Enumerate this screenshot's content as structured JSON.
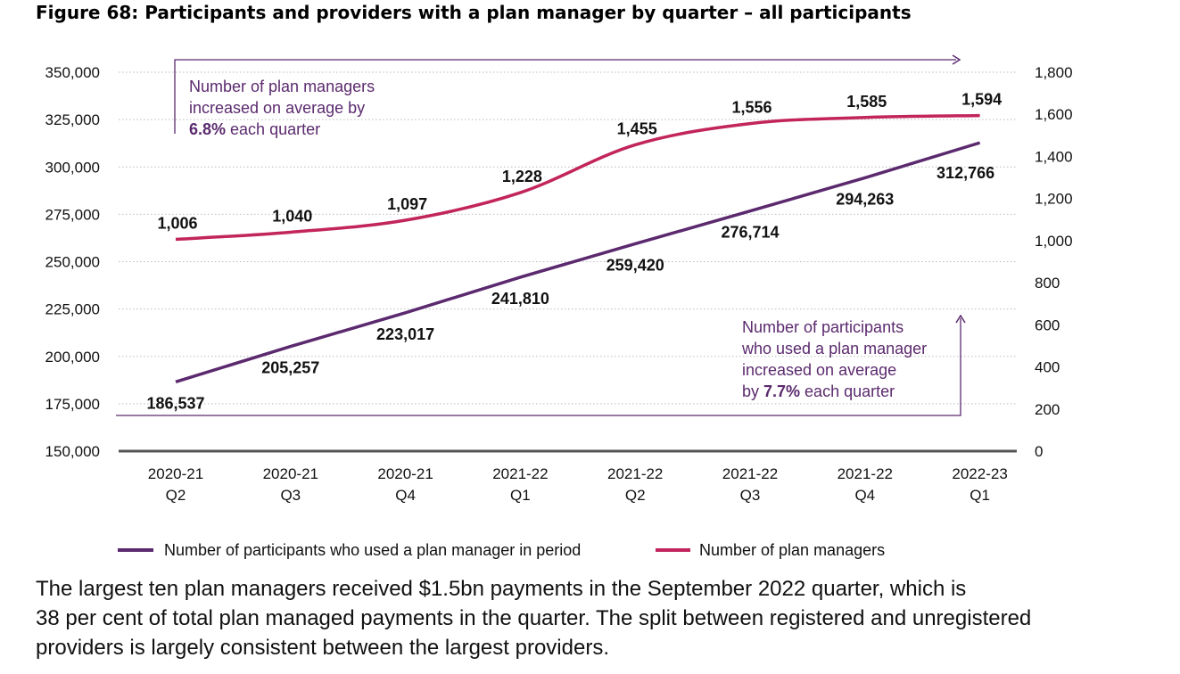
{
  "figure_title": "Figure 68: Participants and providers with a plan manager by quarter – all participants",
  "colors": {
    "participants": "#5b2a6e",
    "plan_managers": "#c2255c",
    "annotation": "#5b2a6e",
    "gridline": "#bbbbbb",
    "axis": "#555555"
  },
  "chart_data": {
    "type": "line",
    "categories": [
      [
        "2020-21",
        "Q2"
      ],
      [
        "2020-21",
        "Q3"
      ],
      [
        "2020-21",
        "Q4"
      ],
      [
        "2021-22",
        "Q1"
      ],
      [
        "2021-22",
        "Q2"
      ],
      [
        "2021-22",
        "Q3"
      ],
      [
        "2021-22",
        "Q4"
      ],
      [
        "2022-23",
        "Q1"
      ]
    ],
    "series": [
      {
        "name": "Number of participants who used a plan manager in period",
        "axis": "left",
        "values": [
          186537,
          205257,
          223017,
          241810,
          259420,
          276714,
          294263,
          312766
        ],
        "labels": [
          "186,537",
          "205,257",
          "223,017",
          "241,810",
          "259,420",
          "276,714",
          "294,263",
          "312,766"
        ]
      },
      {
        "name": "Number of plan managers",
        "axis": "right",
        "values": [
          1006,
          1040,
          1097,
          1228,
          1455,
          1556,
          1585,
          1594
        ],
        "labels": [
          "1,006",
          "1,040",
          "1,097",
          "1,228",
          "1,455",
          "1,556",
          "1,585",
          "1,594"
        ]
      }
    ],
    "y_left": {
      "range": [
        150000,
        350000
      ],
      "ticks": [
        350000,
        325000,
        300000,
        275000,
        250000,
        225000,
        200000,
        175000,
        150000
      ],
      "tick_labels": [
        "350,000",
        "325,000",
        "300,000",
        "275,000",
        "250,000",
        "225,000",
        "200,000",
        "175,000",
        "150,000"
      ]
    },
    "y_right": {
      "range": [
        0,
        1800
      ],
      "ticks": [
        1800,
        1600,
        1400,
        1200,
        1000,
        800,
        600,
        400,
        200,
        0
      ],
      "tick_labels": [
        "1,800",
        "1,600",
        "1,400",
        "1,200",
        "1,000",
        "800",
        "600",
        "400",
        "200",
        "0"
      ]
    },
    "grid": true,
    "legend": "bottom",
    "annotations": [
      {
        "id": "plan-managers-growth",
        "lines": [
          "Number of plan managers",
          "increased on average by",
          "6.8% each quarter"
        ],
        "bold_prefix_line": 2,
        "bold_text": "6.8%"
      },
      {
        "id": "participants-growth",
        "lines": [
          "Number of participants",
          "who used a plan manager",
          "increased on average",
          "by 7.7% each quarter"
        ],
        "bold_text": "7.7%"
      }
    ]
  },
  "body_text": [
    "The largest ten plan managers received $1.5bn payments in the September 2022 quarter, which is",
    "38 per cent of total plan managed payments in the quarter. The split between registered and unregistered",
    "providers is largely consistent between the largest providers."
  ]
}
